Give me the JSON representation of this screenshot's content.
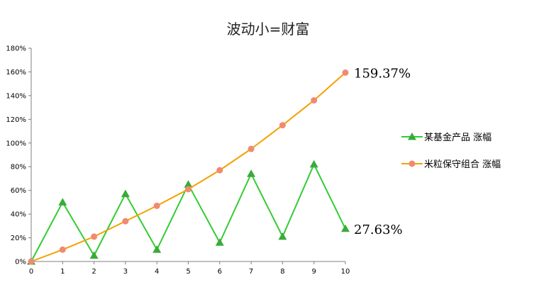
{
  "chart_data": {
    "type": "line",
    "title": "波动小=财富",
    "x": [
      0,
      1,
      2,
      3,
      4,
      5,
      6,
      7,
      8,
      9,
      10
    ],
    "xlim": [
      0,
      10
    ],
    "ylim": [
      0,
      180
    ],
    "yticks": [
      "0%",
      "20%",
      "40%",
      "60%",
      "80%",
      "100%",
      "120%",
      "140%",
      "160%",
      "180%"
    ],
    "grid": false,
    "legend_position": "right",
    "series": [
      {
        "name": "某基金产品 涨幅",
        "color": "#33cc33",
        "marker_color": "#3aaa3a",
        "marker": "triangle",
        "values": [
          0,
          50,
          5,
          57,
          10,
          65,
          16,
          74,
          21,
          82,
          27.63
        ]
      },
      {
        "name": "米粒保守组合 涨幅",
        "color": "#f5a000",
        "marker_color": "#f08a70",
        "marker": "circle",
        "values": [
          0,
          10,
          21,
          34,
          47,
          61,
          77,
          95,
          115,
          136,
          159.37
        ]
      }
    ],
    "annotations": [
      {
        "text": "159.37%",
        "series": 1,
        "index": 10
      },
      {
        "text": "27.63%",
        "series": 0,
        "index": 10
      }
    ]
  }
}
